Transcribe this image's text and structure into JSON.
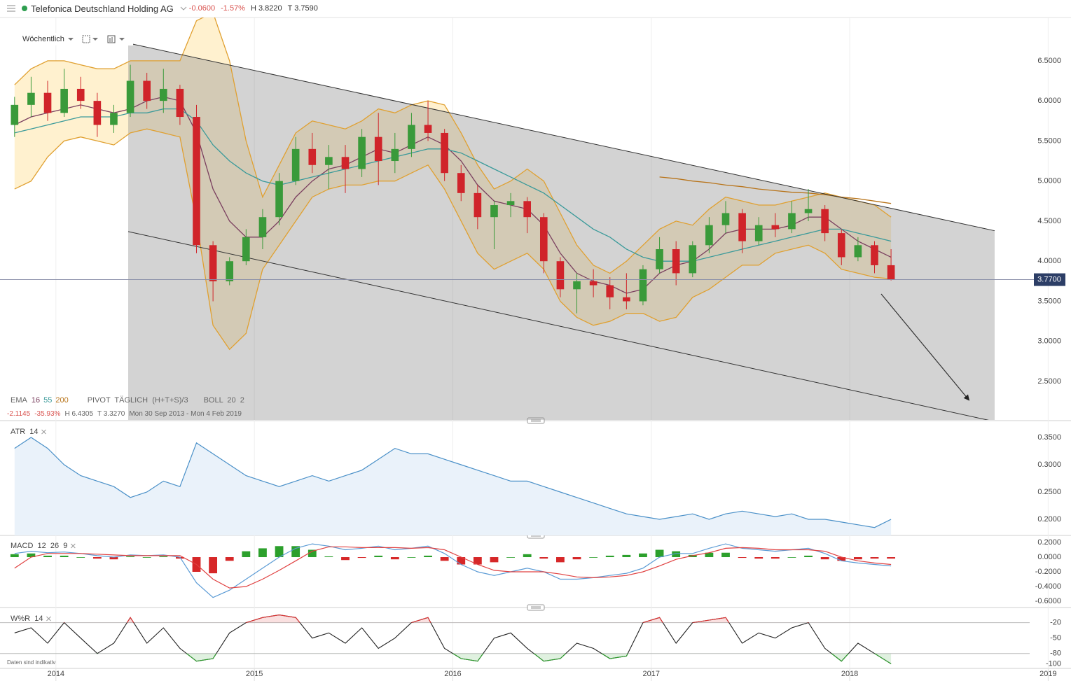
{
  "header": {
    "title": "Telefonica Deutschland Holding AG",
    "change": "-0.0600",
    "change_pct": "-1.57%",
    "high": "H 3.8220",
    "low": "T 3.7590"
  },
  "toolbar": {
    "interval": "Wöchentlich"
  },
  "footnote": "Daten sind indikativ",
  "chart_data": {
    "type": "candlestick",
    "categories": [
      null,
      null,
      null,
      "2014",
      null,
      null,
      null,
      null,
      null,
      null,
      null,
      null,
      null,
      null,
      null,
      "2015",
      null,
      null,
      null,
      null,
      null,
      null,
      null,
      null,
      null,
      null,
      null,
      "2016",
      null,
      null,
      null,
      null,
      null,
      null,
      null,
      null,
      null,
      null,
      null,
      "2017",
      null,
      null,
      null,
      null,
      null,
      null,
      null,
      null,
      null,
      null,
      null,
      "2018",
      null,
      null,
      null,
      null,
      null,
      null,
      null,
      null,
      null,
      null,
      null,
      "2019"
    ],
    "ylim": [
      2.02,
      7.04
    ],
    "yticks": [
      {
        "value": 6.5,
        "label": "6.5000"
      },
      {
        "value": 6.0,
        "label": "6.0000"
      },
      {
        "value": 5.5,
        "label": "5.5000"
      },
      {
        "value": 5.0,
        "label": "5.0000"
      },
      {
        "value": 4.5,
        "label": "4.5000"
      },
      {
        "value": 4.0,
        "label": "4.0000"
      },
      {
        "value": 3.5,
        "label": "3.5000"
      },
      {
        "value": 3.0,
        "label": "3.0000"
      },
      {
        "value": 2.5,
        "label": "2.5000"
      }
    ],
    "up_color": "#3a9a3a",
    "down_color": "#d0242a",
    "ohlc": {
      "open": [
        5.7,
        5.95,
        6.1,
        5.85,
        6.15,
        6.0,
        5.7,
        5.85,
        6.25,
        6.0,
        6.15,
        5.8,
        4.2,
        3.75,
        4.0,
        4.3,
        4.55,
        5.0,
        5.4,
        5.2,
        5.3,
        5.15,
        5.55,
        5.25,
        5.4,
        5.7,
        5.6,
        5.1,
        4.85,
        4.55,
        4.7,
        4.75,
        4.55,
        4.0,
        3.65,
        3.75,
        3.7,
        3.55,
        3.5,
        3.9,
        4.15,
        3.85,
        4.2,
        4.45,
        4.6,
        4.25,
        4.45,
        4.4,
        4.6,
        4.65,
        4.35,
        4.05,
        4.2,
        3.95,
        null,
        null,
        null,
        null,
        null,
        null,
        null,
        null,
        null,
        null
      ],
      "high": [
        6.05,
        6.3,
        6.25,
        6.4,
        6.3,
        6.1,
        5.95,
        6.45,
        6.35,
        6.4,
        6.2,
        5.95,
        4.25,
        4.05,
        4.4,
        4.65,
        5.1,
        5.55,
        5.6,
        5.45,
        5.45,
        5.65,
        5.85,
        5.6,
        5.85,
        6.0,
        5.65,
        5.2,
        4.95,
        4.75,
        4.85,
        4.8,
        4.6,
        4.05,
        3.85,
        3.9,
        3.8,
        3.85,
        3.95,
        4.3,
        4.25,
        4.25,
        4.55,
        4.75,
        4.65,
        4.55,
        4.6,
        4.75,
        4.9,
        4.7,
        4.4,
        4.3,
        4.25,
        4.15,
        null,
        null,
        null,
        null,
        null,
        null,
        null,
        null,
        null,
        null
      ],
      "low": [
        5.55,
        5.8,
        5.75,
        5.8,
        5.9,
        5.55,
        5.6,
        5.8,
        5.9,
        5.85,
        5.7,
        4.1,
        3.5,
        3.7,
        3.95,
        4.15,
        4.45,
        4.95,
        5.1,
        4.9,
        4.85,
        5.05,
        4.95,
        5.1,
        5.3,
        5.5,
        5.0,
        4.75,
        4.4,
        4.15,
        4.55,
        4.35,
        3.85,
        3.55,
        3.35,
        3.55,
        3.4,
        3.4,
        3.45,
        3.85,
        3.7,
        3.8,
        4.1,
        4.35,
        4.1,
        4.2,
        4.3,
        4.35,
        4.5,
        4.25,
        3.95,
        4.0,
        3.85,
        3.76,
        null,
        null,
        null,
        null,
        null,
        null,
        null,
        null,
        null,
        null
      ],
      "close": [
        5.95,
        6.1,
        5.85,
        6.15,
        6.0,
        5.7,
        5.85,
        6.25,
        6.0,
        6.15,
        5.8,
        4.2,
        3.75,
        4.0,
        4.3,
        4.55,
        5.0,
        5.4,
        5.2,
        5.3,
        5.15,
        5.55,
        5.25,
        5.4,
        5.7,
        5.6,
        5.1,
        4.85,
        4.55,
        4.7,
        4.75,
        4.55,
        4.0,
        3.65,
        3.75,
        3.7,
        3.55,
        3.5,
        3.9,
        4.15,
        3.85,
        4.2,
        4.45,
        4.6,
        4.25,
        4.45,
        4.4,
        4.6,
        4.65,
        4.35,
        4.05,
        4.2,
        3.95,
        3.77,
        null,
        null,
        null,
        null,
        null,
        null,
        null,
        null,
        null,
        null
      ]
    },
    "ema_label": "EMA",
    "series": [
      {
        "name": "16",
        "color": "#7a3f5f",
        "values": [
          5.7,
          5.8,
          5.85,
          5.9,
          5.95,
          5.9,
          5.85,
          5.9,
          6.0,
          6.05,
          6.0,
          5.6,
          4.9,
          4.5,
          4.3,
          4.3,
          4.5,
          4.8,
          5.0,
          5.15,
          5.2,
          5.3,
          5.4,
          5.35,
          5.45,
          5.55,
          5.45,
          5.25,
          4.95,
          4.75,
          4.7,
          4.65,
          4.45,
          4.1,
          3.85,
          3.75,
          3.7,
          3.6,
          3.65,
          3.85,
          3.95,
          4.0,
          4.15,
          4.35,
          4.4,
          4.4,
          4.4,
          4.45,
          4.55,
          4.55,
          4.4,
          4.25,
          4.15,
          4.05,
          null,
          null,
          null,
          null,
          null,
          null,
          null,
          null,
          null,
          null
        ]
      },
      {
        "name": "55",
        "color": "#3a9a9a",
        "values": [
          5.6,
          5.65,
          5.7,
          5.75,
          5.8,
          5.8,
          5.8,
          5.85,
          5.85,
          5.9,
          5.9,
          5.75,
          5.45,
          5.25,
          5.1,
          5.0,
          4.95,
          5.0,
          5.05,
          5.1,
          5.15,
          5.2,
          5.25,
          5.3,
          5.35,
          5.4,
          5.4,
          5.35,
          5.25,
          5.15,
          5.05,
          4.95,
          4.85,
          4.7,
          4.55,
          4.4,
          4.3,
          4.15,
          4.05,
          4.0,
          4.0,
          4.0,
          4.05,
          4.1,
          4.15,
          4.2,
          4.25,
          4.3,
          4.35,
          4.4,
          4.4,
          4.35,
          4.3,
          4.25,
          null,
          null,
          null,
          null,
          null,
          null,
          null,
          null,
          null,
          null
        ]
      },
      {
        "name": "200",
        "color": "#b8741a",
        "values": [
          null,
          null,
          null,
          null,
          null,
          null,
          null,
          null,
          null,
          null,
          null,
          null,
          null,
          null,
          null,
          null,
          null,
          null,
          null,
          null,
          null,
          null,
          null,
          null,
          null,
          null,
          null,
          null,
          null,
          null,
          null,
          null,
          null,
          null,
          null,
          null,
          null,
          null,
          null,
          5.05,
          5.03,
          5.0,
          4.98,
          4.95,
          4.93,
          4.9,
          4.88,
          4.86,
          4.85,
          4.83,
          4.8,
          4.78,
          4.75,
          4.72,
          null,
          null,
          null,
          null,
          null,
          null,
          null,
          null,
          null,
          null
        ]
      }
    ],
    "pivot_label": "PIVOT  TÄGLICH  (H+T+S)/3",
    "bollinger": {
      "label": "BOLL  20  2",
      "color": "#e0a030",
      "fill": "#fff1cf",
      "upper": [
        6.2,
        6.4,
        6.5,
        6.5,
        6.45,
        6.4,
        6.4,
        6.5,
        6.5,
        6.5,
        6.5,
        7.0,
        7.1,
        6.5,
        5.5,
        4.8,
        5.2,
        5.6,
        5.75,
        5.7,
        5.65,
        5.75,
        5.9,
        5.85,
        5.95,
        6.0,
        5.95,
        5.6,
        5.2,
        4.9,
        5.0,
        5.15,
        5.0,
        4.6,
        4.2,
        3.95,
        3.85,
        4.0,
        4.2,
        4.4,
        4.5,
        4.45,
        4.65,
        4.8,
        4.75,
        4.7,
        4.7,
        4.75,
        4.8,
        4.85,
        4.8,
        4.75,
        4.7,
        4.55,
        null,
        null,
        null,
        null,
        null,
        null,
        null,
        null,
        null,
        null
      ],
      "lower": [
        4.9,
        5.0,
        5.3,
        5.5,
        5.55,
        5.5,
        5.45,
        5.6,
        5.65,
        5.6,
        5.55,
        4.5,
        3.2,
        2.9,
        3.1,
        3.9,
        4.2,
        4.5,
        4.8,
        4.9,
        4.95,
        4.95,
        5.0,
        5.0,
        5.1,
        5.2,
        4.9,
        4.5,
        4.1,
        3.9,
        4.0,
        4.1,
        3.9,
        3.5,
        3.3,
        3.2,
        3.25,
        3.35,
        3.35,
        3.25,
        3.3,
        3.55,
        3.65,
        3.8,
        3.95,
        3.95,
        4.1,
        4.15,
        4.2,
        4.1,
        3.9,
        3.85,
        3.8,
        3.78,
        null,
        null,
        null,
        null,
        null,
        null,
        null,
        null,
        null,
        null
      ]
    },
    "trend_channel": {
      "upper": [
        6.72,
        4.38
      ],
      "lower": [
        4.37,
        2.0
      ],
      "color": "#333333",
      "fill": "rgba(140,140,140,0.38)"
    },
    "last_price": {
      "value": 3.77,
      "label": "3.7700",
      "color": "#2c3e66"
    },
    "summary": {
      "change": "-2.1145",
      "change_pct": "-35.93%",
      "high": "H 6.4305",
      "low": "T 3.3270",
      "range": "Mon 30 Sep 2013 - Mon 4 Feb 2019"
    },
    "indicators": [
      {
        "type": "area-line",
        "label": "ATR  14",
        "color": "#4a90c8",
        "fill": "#eaf2fa",
        "ylim": [
          0.1705,
          0.3756
        ],
        "yticks": [
          {
            "value": 0.35,
            "label": "0.3500"
          },
          {
            "value": 0.3,
            "label": "0.3000"
          },
          {
            "value": 0.25,
            "label": "0.2500"
          },
          {
            "value": 0.2,
            "label": "0.2000"
          }
        ],
        "values": [
          0.33,
          0.35,
          0.33,
          0.3,
          0.28,
          0.27,
          0.26,
          0.24,
          0.25,
          0.27,
          0.26,
          0.34,
          0.32,
          0.3,
          0.28,
          0.27,
          0.26,
          0.27,
          0.28,
          0.27,
          0.28,
          0.29,
          0.31,
          0.33,
          0.32,
          0.32,
          0.31,
          0.3,
          0.29,
          0.28,
          0.27,
          0.27,
          0.26,
          0.25,
          0.24,
          0.23,
          0.22,
          0.21,
          0.205,
          0.2,
          0.205,
          0.21,
          0.2,
          0.21,
          0.215,
          0.21,
          0.205,
          0.21,
          0.2,
          0.2,
          0.195,
          0.19,
          0.185,
          0.2,
          null,
          null,
          null,
          null,
          null,
          null,
          null,
          null,
          null,
          null
        ]
      },
      {
        "type": "macd",
        "label": "MACD  12  26  9",
        "macd_color": "#5b9bd5",
        "signal_color": "#e04040",
        "up_color": "#2ca02c",
        "down_color": "#d62728",
        "ylim": [
          -0.686,
          0.267
        ],
        "yticks": [
          {
            "value": 0.2,
            "label": "0.2000"
          },
          {
            "value": 0.0,
            "label": "0.0000"
          },
          {
            "value": -0.2,
            "label": "-0.2000"
          },
          {
            "value": -0.4,
            "label": "-0.4000"
          },
          {
            "value": -0.6,
            "label": "-0.6000"
          }
        ],
        "macd": [
          0.05,
          0.08,
          0.06,
          0.07,
          0.05,
          0.02,
          0.0,
          0.03,
          0.02,
          0.03,
          0.0,
          -0.35,
          -0.55,
          -0.45,
          -0.3,
          -0.15,
          0.0,
          0.12,
          0.18,
          0.15,
          0.1,
          0.12,
          0.15,
          0.1,
          0.12,
          0.15,
          0.05,
          -0.1,
          -0.2,
          -0.25,
          -0.2,
          -0.15,
          -0.2,
          -0.3,
          -0.3,
          -0.28,
          -0.25,
          -0.22,
          -0.15,
          0.0,
          0.05,
          0.05,
          0.12,
          0.18,
          0.12,
          0.1,
          0.08,
          0.1,
          0.12,
          0.05,
          -0.05,
          -0.08,
          -0.1,
          -0.12,
          null,
          null,
          null,
          null,
          null,
          null,
          null,
          null,
          null,
          null
        ],
        "signal": [
          -0.15,
          0.0,
          0.05,
          0.05,
          0.05,
          0.04,
          0.03,
          0.02,
          0.02,
          0.02,
          0.02,
          -0.1,
          -0.3,
          -0.42,
          -0.4,
          -0.3,
          -0.18,
          -0.05,
          0.08,
          0.14,
          0.14,
          0.13,
          0.13,
          0.13,
          0.12,
          0.13,
          0.1,
          0.0,
          -0.1,
          -0.18,
          -0.2,
          -0.2,
          -0.2,
          -0.23,
          -0.27,
          -0.28,
          -0.27,
          -0.25,
          -0.2,
          -0.12,
          -0.03,
          0.02,
          0.06,
          0.12,
          0.13,
          0.12,
          0.1,
          0.1,
          0.1,
          0.08,
          0.0,
          -0.05,
          -0.08,
          -0.1,
          null,
          null,
          null,
          null,
          null,
          null,
          null,
          null,
          null,
          null
        ],
        "histogram": [
          0.04,
          0.05,
          0.02,
          0.02,
          0.0,
          -0.02,
          -0.03,
          0.01,
          0.0,
          0.01,
          -0.02,
          -0.2,
          -0.22,
          -0.05,
          0.08,
          0.12,
          0.15,
          0.15,
          0.1,
          0.01,
          -0.04,
          -0.01,
          0.02,
          -0.03,
          0.0,
          0.02,
          -0.05,
          -0.1,
          -0.1,
          -0.07,
          0.0,
          0.04,
          -0.02,
          -0.07,
          -0.03,
          0.0,
          0.02,
          0.03,
          0.05,
          0.1,
          0.08,
          0.03,
          0.06,
          0.06,
          -0.01,
          -0.02,
          -0.02,
          0.0,
          0.02,
          -0.03,
          -0.05,
          -0.03,
          -0.02,
          -0.02,
          null,
          null,
          null,
          null,
          null,
          null,
          null,
          null,
          null,
          null
        ]
      },
      {
        "type": "williams",
        "label": "W%R  14",
        "color": "#222222",
        "overbought_color": "#e03030",
        "oversold_color": "#2ca02c",
        "ylim": [
          -109,
          4
        ],
        "yticks": [
          -20,
          -50,
          -80,
          -100
        ],
        "levels": [
          -20,
          -80
        ],
        "values": [
          -40,
          -30,
          -60,
          -20,
          -50,
          -80,
          -60,
          -10,
          -60,
          -30,
          -70,
          -95,
          -90,
          -40,
          -20,
          -10,
          -5,
          -10,
          -50,
          -40,
          -60,
          -30,
          -70,
          -50,
          -20,
          -10,
          -70,
          -90,
          -95,
          -50,
          -40,
          -70,
          -95,
          -90,
          -60,
          -70,
          -90,
          -85,
          -20,
          -10,
          -60,
          -20,
          -15,
          -10,
          -60,
          -40,
          -50,
          -30,
          -20,
          -70,
          -95,
          -60,
          -80,
          -100,
          null,
          null,
          null,
          null,
          null,
          null,
          null,
          null,
          null,
          null
        ]
      }
    ]
  }
}
